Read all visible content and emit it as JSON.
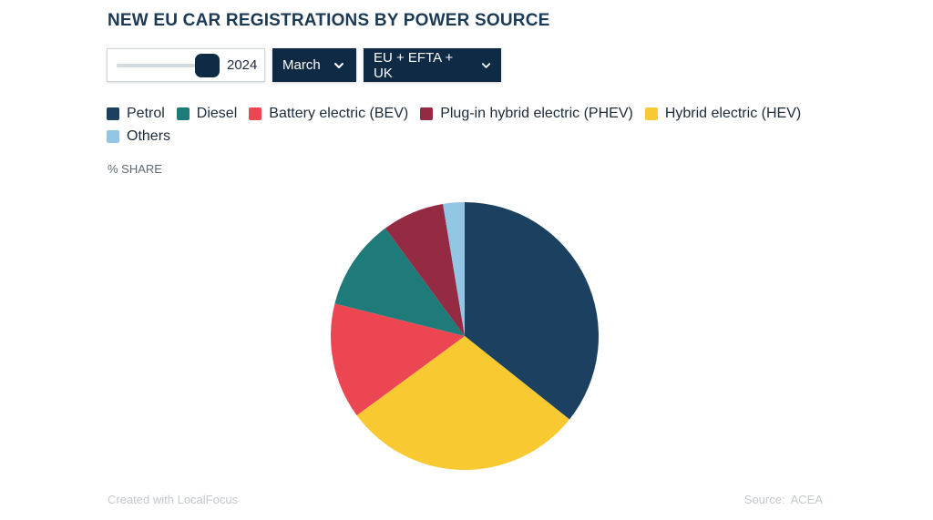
{
  "title": "NEW EU CAR REGISTRATIONS BY POWER SOURCE",
  "controls": {
    "year": "2024",
    "month": "March",
    "region": "EU + EFTA + UK"
  },
  "icons": {
    "dropdown": "chevron-down-icon"
  },
  "unit_label": "% SHARE",
  "footer": {
    "credit": "Created with LocalFocus",
    "source_label": "Source:",
    "source_value": "ACEA"
  },
  "chart_data": {
    "type": "pie",
    "categories": [
      "Petrol",
      "Hybrid electric (HEV)",
      "Battery electric (BEV)",
      "Diesel",
      "Plug-in hybrid electric (PHEV)",
      "Others"
    ],
    "values": [
      35.7,
      29.2,
      14.0,
      11.0,
      7.5,
      2.6
    ],
    "colors": [
      "#1c4160",
      "#f9c932",
      "#ec4653",
      "#1f7a7a",
      "#952b42",
      "#92c6e4"
    ],
    "legend": {
      "placement": "top",
      "entries": [
        {
          "label": "Petrol",
          "color": "#1c4160"
        },
        {
          "label": "Diesel",
          "color": "#1f7a7a"
        },
        {
          "label": "Battery electric (BEV)",
          "color": "#ec4653"
        },
        {
          "label": "Plug-in hybrid electric (PHEV)",
          "color": "#952b42"
        },
        {
          "label": "Hybrid electric (HEV)",
          "color": "#f9c932"
        },
        {
          "label": "Others",
          "color": "#92c6e4"
        }
      ]
    }
  }
}
